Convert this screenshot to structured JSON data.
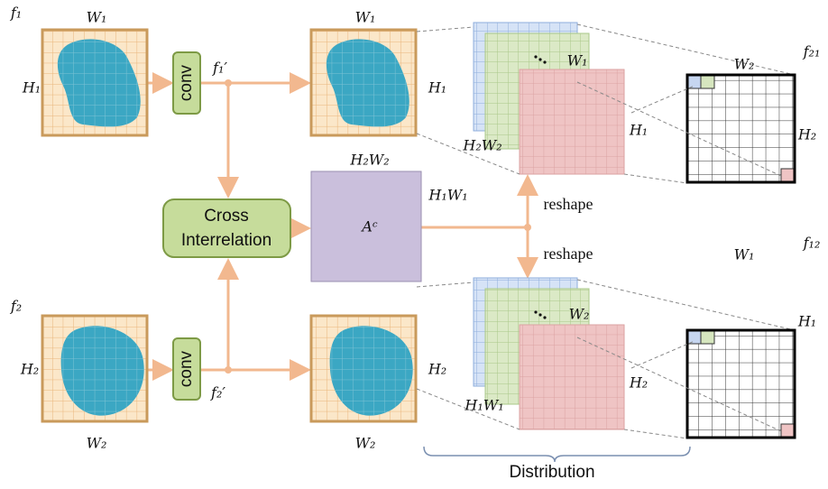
{
  "inputs": [
    {
      "name": "f₁",
      "width": "W₁",
      "height": "H₁"
    },
    {
      "name": "f₂",
      "width": "W₂",
      "height": "H₂"
    }
  ],
  "convs": [
    {
      "label": "conv",
      "output": "f₁′"
    },
    {
      "label": "conv",
      "output": "f₂′"
    }
  ],
  "features": [
    {
      "width": "W₁",
      "height": "H₁"
    },
    {
      "width": "W₂",
      "height": "H₂"
    }
  ],
  "cross_interrelation": [
    "Cross",
    "Interrelation"
  ],
  "affinity": {
    "label": "Aᶜ",
    "width": "H₂W₂",
    "height": "H₁W₁"
  },
  "reshape": [
    "reshape",
    "reshape"
  ],
  "stacks": [
    {
      "depth": "H₂W₂",
      "width": "W₁",
      "height": "H₁"
    },
    {
      "depth": "H₁W₁",
      "width": "W₂",
      "height": "H₂"
    }
  ],
  "maps": [
    {
      "name": "f₂₁",
      "width": "W₂",
      "height": "H₂"
    },
    {
      "name": "f₁₂",
      "width": "W₁",
      "height": "H₁"
    }
  ],
  "footer": "Distribution"
}
